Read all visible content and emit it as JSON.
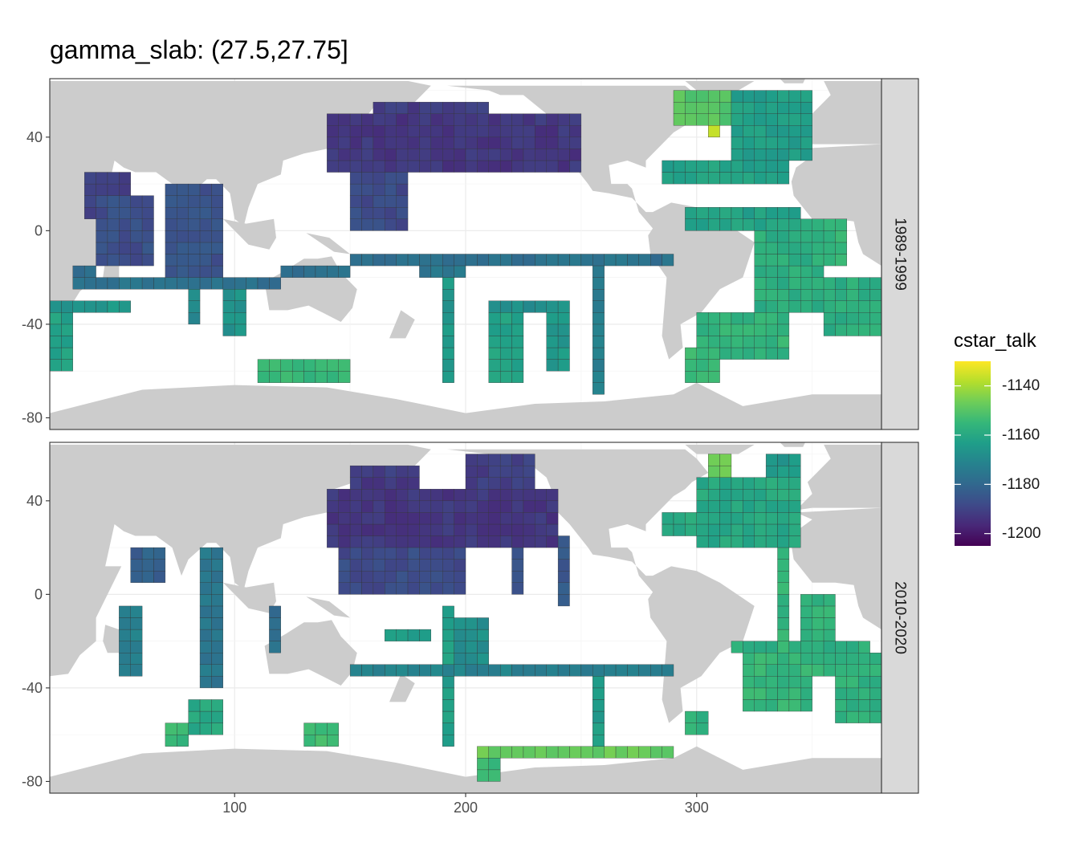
{
  "title": "gamma_slab: (27.5,27.75]",
  "chart_data": {
    "type": "heatmap",
    "title": "gamma_slab: (27.5,27.75]",
    "xlabel": "",
    "ylabel": "",
    "xlim": [
      20,
      380
    ],
    "ylim": [
      -85,
      65
    ],
    "x_ticks": [
      "100",
      "200",
      "300"
    ],
    "x_tick_values": [
      100,
      200,
      300
    ],
    "y_ticks": [
      "40",
      "0",
      "-40",
      "-80"
    ],
    "y_tick_values": [
      40,
      0,
      -40,
      -80
    ],
    "grid": true,
    "facets": [
      "1989-1999",
      "2010-2020"
    ],
    "legend": {
      "title": "cstar_talk",
      "position": "right",
      "range": [
        -1205,
        -1130
      ],
      "ticks": [
        "-1140",
        "-1160",
        "-1180",
        "-1200"
      ],
      "tick_values": [
        -1140,
        -1160,
        -1180,
        -1200
      ],
      "colormap": "viridis",
      "colors": [
        "#440154",
        "#482878",
        "#3E4A89",
        "#31688E",
        "#26828E",
        "#1F9E89",
        "#35B779",
        "#6DCD59",
        "#B4DE2C",
        "#FDE725"
      ]
    },
    "land_color": "#CCCCCC",
    "cell_size_deg": 5,
    "panels": [
      {
        "facet": "1989-1999",
        "regions": [
          {
            "lon": [
              70,
              95
            ],
            "lat": [
              -20,
              20
            ],
            "value": -1186
          },
          {
            "lon": [
              40,
              65
            ],
            "lat": [
              -15,
              15
            ],
            "value": -1187
          },
          {
            "lon": [
              35,
              55
            ],
            "lat": [
              5,
              25
            ],
            "value": -1190
          },
          {
            "lon": [
              30,
              40
            ],
            "lat": [
              -25,
              -15
            ],
            "value": -1178
          },
          {
            "lon": [
              40,
              120
            ],
            "lat": [
              -25,
              -20
            ],
            "value": -1177
          },
          {
            "lon": [
              20,
              55
            ],
            "lat": [
              -35,
              -30
            ],
            "value": -1165
          },
          {
            "lon": [
              20,
              30
            ],
            "lat": [
              -60,
              -30
            ],
            "value": -1162
          },
          {
            "lon": [
              80,
              85
            ],
            "lat": [
              -40,
              -25
            ],
            "value": -1170
          },
          {
            "lon": [
              95,
              105
            ],
            "lat": [
              -45,
              -25
            ],
            "value": -1166
          },
          {
            "lon": [
              110,
              150
            ],
            "lat": [
              -65,
              -55
            ],
            "value": -1155
          },
          {
            "lon": [
              140,
              250
            ],
            "lat": [
              25,
              50
            ],
            "value": -1193
          },
          {
            "lon": [
              160,
              210
            ],
            "lat": [
              40,
              55
            ],
            "value": -1192
          },
          {
            "lon": [
              150,
              175
            ],
            "lat": [
              0,
              25
            ],
            "value": -1188
          },
          {
            "lon": [
              120,
              150
            ],
            "lat": [
              -20,
              -15
            ],
            "value": -1178
          },
          {
            "lon": [
              150,
              290
            ],
            "lat": [
              -15,
              -10
            ],
            "value": -1177
          },
          {
            "lon": [
              180,
              200
            ],
            "lat": [
              -20,
              -10
            ],
            "value": -1175
          },
          {
            "lon": [
              190,
              195
            ],
            "lat": [
              -65,
              -20
            ],
            "value": -1165
          },
          {
            "lon": [
              210,
              245
            ],
            "lat": [
              -35,
              -30
            ],
            "value": -1168
          },
          {
            "lon": [
              210,
              225
            ],
            "lat": [
              -65,
              -35
            ],
            "value": -1162
          },
          {
            "lon": [
              235,
              245
            ],
            "lat": [
              -60,
              -30
            ],
            "value": -1165
          },
          {
            "lon": [
              255,
              260
            ],
            "lat": [
              -70,
              -10
            ],
            "value": -1172
          },
          {
            "lon": [
              290,
              315
            ],
            "lat": [
              45,
              60
            ],
            "value": -1150
          },
          {
            "lon": [
              305,
              310
            ],
            "lat": [
              40,
              50
            ],
            "value": -1135
          },
          {
            "lon": [
              315,
              350
            ],
            "lat": [
              30,
              60
            ],
            "value": -1163
          },
          {
            "lon": [
              335,
              350
            ],
            "lat": [
              35,
              50
            ],
            "value": -1177
          },
          {
            "lon": [
              285,
              340
            ],
            "lat": [
              20,
              30
            ],
            "value": -1162
          },
          {
            "lon": [
              295,
              345
            ],
            "lat": [
              0,
              10
            ],
            "value": -1162
          },
          {
            "lon": [
              325,
              355
            ],
            "lat": [
              -35,
              5
            ],
            "value": -1158
          },
          {
            "lon": [
              345,
              365
            ],
            "lat": [
              -15,
              5
            ],
            "value": -1155
          },
          {
            "lon": [
              355,
              380
            ],
            "lat": [
              -45,
              -20
            ],
            "value": -1158
          },
          {
            "lon": [
              300,
              340
            ],
            "lat": [
              -55,
              -35
            ],
            "value": -1156
          },
          {
            "lon": [
              295,
              310
            ],
            "lat": [
              -65,
              -50
            ],
            "value": -1155
          }
        ]
      },
      {
        "facet": "2010-2020",
        "regions": [
          {
            "lon": [
              140,
              240
            ],
            "lat": [
              20,
              45
            ],
            "value": -1193
          },
          {
            "lon": [
              150,
              180
            ],
            "lat": [
              40,
              55
            ],
            "value": -1192
          },
          {
            "lon": [
              200,
              230
            ],
            "lat": [
              45,
              60
            ],
            "value": -1191
          },
          {
            "lon": [
              145,
              200
            ],
            "lat": [
              0,
              20
            ],
            "value": -1188
          },
          {
            "lon": [
              240,
              245
            ],
            "lat": [
              -5,
              25
            ],
            "value": -1184
          },
          {
            "lon": [
              220,
              225
            ],
            "lat": [
              0,
              35
            ],
            "value": -1185
          },
          {
            "lon": [
              50,
              60
            ],
            "lat": [
              -35,
              -5
            ],
            "value": -1172
          },
          {
            "lon": [
              55,
              70
            ],
            "lat": [
              5,
              20
            ],
            "value": -1182
          },
          {
            "lon": [
              85,
              95
            ],
            "lat": [
              -40,
              20
            ],
            "value": -1175
          },
          {
            "lon": [
              115,
              120
            ],
            "lat": [
              -25,
              -5
            ],
            "value": -1178
          },
          {
            "lon": [
              80,
              95
            ],
            "lat": [
              -60,
              -45
            ],
            "value": -1160
          },
          {
            "lon": [
              70,
              80
            ],
            "lat": [
              -65,
              -55
            ],
            "value": -1155
          },
          {
            "lon": [
              130,
              145
            ],
            "lat": [
              -65,
              -55
            ],
            "value": -1154
          },
          {
            "lon": [
              150,
              290
            ],
            "lat": [
              -35,
              -30
            ],
            "value": -1172
          },
          {
            "lon": [
              165,
              185
            ],
            "lat": [
              -20,
              -15
            ],
            "value": -1164
          },
          {
            "lon": [
              195,
              210
            ],
            "lat": [
              -30,
              -10
            ],
            "value": -1168
          },
          {
            "lon": [
              190,
              195
            ],
            "lat": [
              -65,
              -5
            ],
            "value": -1163
          },
          {
            "lon": [
              205,
              290
            ],
            "lat": [
              -70,
              -65
            ],
            "value": -1148
          },
          {
            "lon": [
              205,
              215
            ],
            "lat": [
              -80,
              -70
            ],
            "value": -1155
          },
          {
            "lon": [
              255,
              260
            ],
            "lat": [
              -65,
              -35
            ],
            "value": -1163
          },
          {
            "lon": [
              305,
              315
            ],
            "lat": [
              50,
              60
            ],
            "value": -1146
          },
          {
            "lon": [
              300,
              345
            ],
            "lat": [
              20,
              50
            ],
            "value": -1160
          },
          {
            "lon": [
              285,
              300
            ],
            "lat": [
              25,
              35
            ],
            "value": -1160
          },
          {
            "lon": [
              330,
              345
            ],
            "lat": [
              40,
              60
            ],
            "value": -1165
          },
          {
            "lon": [
              335,
              340
            ],
            "lat": [
              -30,
              20
            ],
            "value": -1156
          },
          {
            "lon": [
              315,
              375
            ],
            "lat": [
              -25,
              -20
            ],
            "value": -1158
          },
          {
            "lon": [
              320,
              350
            ],
            "lat": [
              -50,
              -25
            ],
            "value": -1156
          },
          {
            "lon": [
              345,
              360
            ],
            "lat": [
              -35,
              0
            ],
            "value": -1156
          },
          {
            "lon": [
              360,
              380
            ],
            "lat": [
              -55,
              -25
            ],
            "value": -1157
          },
          {
            "lon": [
              295,
              305
            ],
            "lat": [
              -60,
              -50
            ],
            "value": -1157
          }
        ]
      }
    ]
  }
}
